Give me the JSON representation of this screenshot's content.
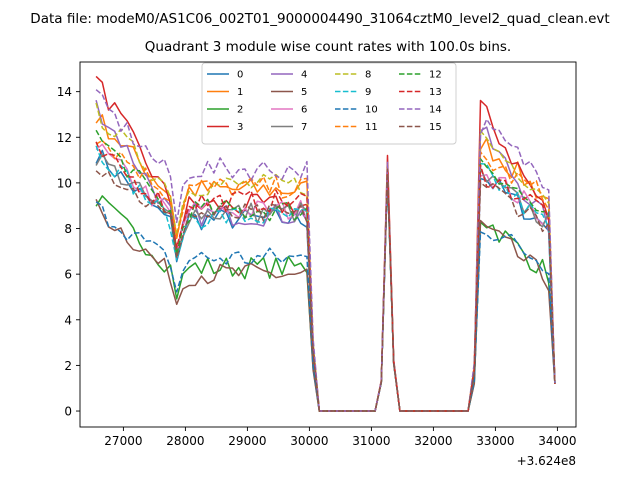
{
  "figure": {
    "suptitle": "Data file: modeM0/AS1C06_002T01_9000004490_31064cztM0_level2_quad_clean.evt",
    "title": "Quadrant 3 module wise count rates with 100.0s bins."
  },
  "chart_data": {
    "type": "line",
    "title": "Quadrant 3 module wise count rates with 100.0s bins.",
    "xlabel": "",
    "ylabel": "",
    "x_offset_label": "+3.624e8",
    "xlim": [
      26300,
      34300
    ],
    "ylim": [
      -0.7,
      15.3
    ],
    "x_ticks": [
      27000,
      28000,
      29000,
      30000,
      31000,
      32000,
      33000,
      34000
    ],
    "x_tick_labels": [
      "27000",
      "28000",
      "29000",
      "30000",
      "31000",
      "32000",
      "33000",
      "34000"
    ],
    "y_ticks": [
      0,
      2,
      4,
      6,
      8,
      10,
      12,
      14
    ],
    "y_tick_labels": [
      "0",
      "2",
      "4",
      "6",
      "8",
      "10",
      "12",
      "14"
    ],
    "grid": false,
    "legend": {
      "location": "upper-center",
      "columns": 4
    },
    "gaps": [
      {
        "start": 30160,
        "end": 31060
      },
      {
        "start": 31460,
        "end": 32560
      }
    ],
    "series": [
      {
        "name": "0",
        "color": "#1f77b4",
        "style": "solid",
        "level": 8.4,
        "start": 11.3,
        "peak": 10.5
      },
      {
        "name": "1",
        "color": "#ff7f0e",
        "style": "solid",
        "level": 9.7,
        "start": 12.9,
        "peak": 10.9
      },
      {
        "name": "2",
        "color": "#2ca02c",
        "style": "solid",
        "level": 6.3,
        "start": 9.3,
        "peak": 10.6
      },
      {
        "name": "3",
        "color": "#d62728",
        "style": "solid",
        "level": 9.0,
        "start": 14.5,
        "peak": 11.2
      },
      {
        "name": "4",
        "color": "#9467bd",
        "style": "solid",
        "level": 8.6,
        "start": 13.4,
        "peak": 10.7
      },
      {
        "name": "5",
        "color": "#8c564b",
        "style": "solid",
        "level": 6.0,
        "start": 8.9,
        "peak": 10.4
      },
      {
        "name": "6",
        "color": "#e377c2",
        "style": "solid",
        "level": 8.8,
        "start": 11.6,
        "peak": 10.6
      },
      {
        "name": "7",
        "color": "#7f7f7f",
        "style": "solid",
        "level": 8.7,
        "start": 11.2,
        "peak": 10.5
      },
      {
        "name": "8",
        "color": "#bcbd22",
        "style": "dashed",
        "level": 9.9,
        "start": 13.1,
        "peak": 10.8
      },
      {
        "name": "9",
        "color": "#17becf",
        "style": "dashed",
        "level": 8.5,
        "start": 11.5,
        "peak": 10.5
      },
      {
        "name": "10",
        "color": "#1f77b4",
        "style": "dashed",
        "level": 6.7,
        "start": 8.9,
        "peak": 10.3
      },
      {
        "name": "11",
        "color": "#ff7f0e",
        "style": "dashed",
        "level": 9.8,
        "start": 12.1,
        "peak": 10.7
      },
      {
        "name": "12",
        "color": "#2ca02c",
        "style": "dashed",
        "level": 8.8,
        "start": 12.1,
        "peak": 10.6
      },
      {
        "name": "13",
        "color": "#d62728",
        "style": "dashed",
        "level": 9.2,
        "start": 11.4,
        "peak": 10.8
      },
      {
        "name": "14",
        "color": "#9467bd",
        "style": "dashed",
        "level": 10.6,
        "start": 13.7,
        "peak": 10.9
      },
      {
        "name": "15",
        "color": "#8c564b",
        "style": "dashed",
        "level": 8.6,
        "start": 10.9,
        "peak": 10.6
      }
    ]
  }
}
